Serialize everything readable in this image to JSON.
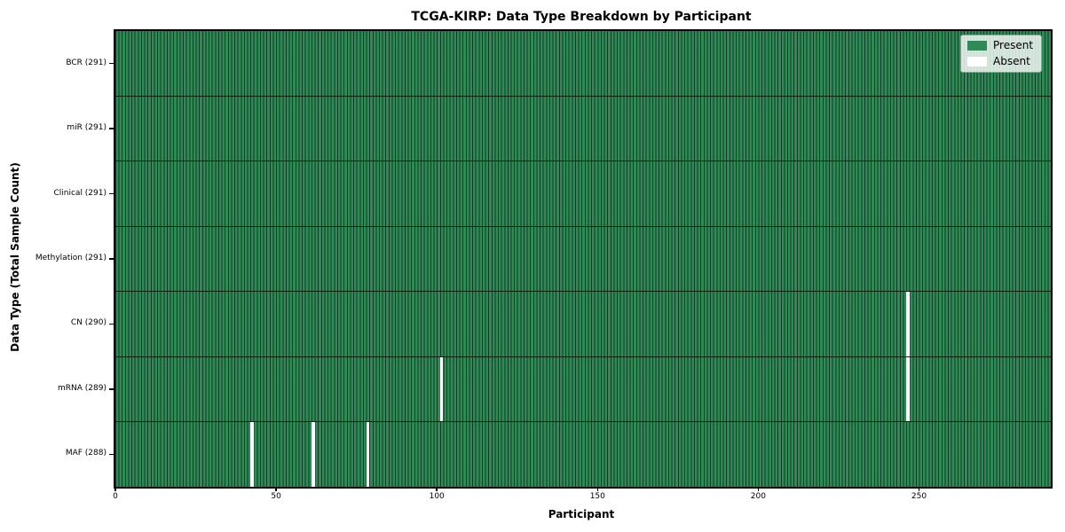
{
  "chart_data": {
    "type": "heatmap",
    "title": "TCGA-KIRP: Data Type Breakdown by Participant",
    "xlabel": "Participant",
    "ylabel": "Data Type (Total Sample Count)",
    "n_participants": 291,
    "x_range": [
      0,
      291
    ],
    "x_ticks": [
      0,
      50,
      100,
      150,
      200,
      250
    ],
    "grid": "row-dividers",
    "rows": [
      {
        "data_type": "BCR",
        "label": "BCR (291)",
        "present_count": 291,
        "absent_participants": []
      },
      {
        "data_type": "miR",
        "label": "miR (291)",
        "present_count": 291,
        "absent_participants": []
      },
      {
        "data_type": "Clinical",
        "label": "Clinical (291)",
        "present_count": 291,
        "absent_participants": []
      },
      {
        "data_type": "Methylation",
        "label": "Methylation (291)",
        "present_count": 291,
        "absent_participants": []
      },
      {
        "data_type": "CN",
        "label": "CN (290)",
        "present_count": 290,
        "absent_participants": [
          246
        ]
      },
      {
        "data_type": "mRNA",
        "label": "mRNA (289)",
        "present_count": 289,
        "absent_participants": [
          101,
          246
        ]
      },
      {
        "data_type": "MAF",
        "label": "MAF (288)",
        "present_count": 288,
        "absent_participants": [
          42,
          61,
          78
        ]
      }
    ],
    "legend": {
      "position": "upper-right",
      "entries": [
        {
          "label": "Present",
          "color": "#2e8b57"
        },
        {
          "label": "Absent",
          "color": "#ffffff"
        }
      ]
    },
    "colors": {
      "present": "#2e8b57",
      "absent": "#ffffff",
      "bar_edge": "rgba(8,26,15,0.72)",
      "row_divider": "#10200f",
      "axis": "#000000"
    }
  }
}
